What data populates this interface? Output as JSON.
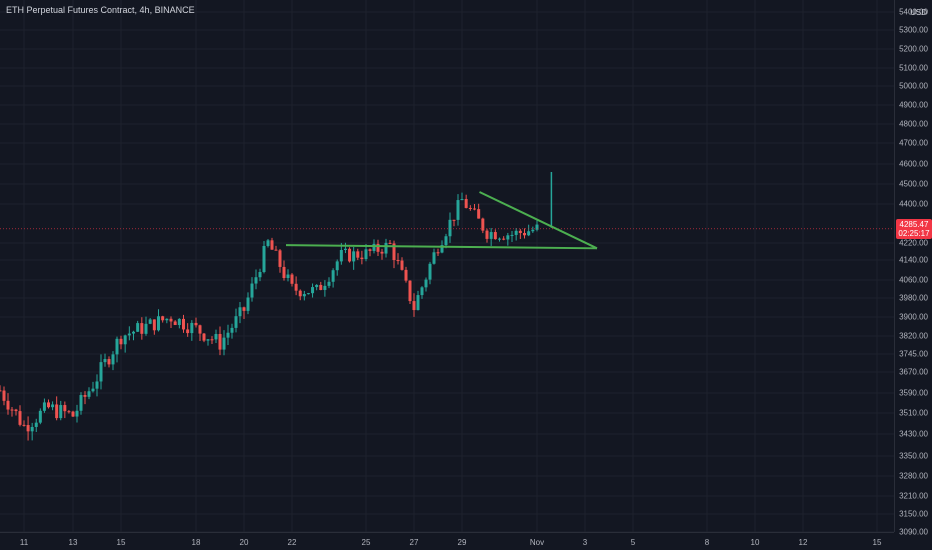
{
  "header": {
    "title": "ETH Perpetual Futures Contract, 4h, BINANCE"
  },
  "price_axis": {
    "currency": "USD",
    "ticks": [
      "5400.00",
      "5300.00",
      "5200.00",
      "5100.00",
      "5000.00",
      "4900.00",
      "4800.00",
      "4700.00",
      "4600.00",
      "4500.00",
      "4400.00",
      "4220.00",
      "4140.00",
      "4060.00",
      "3980.00",
      "3900.00",
      "3820.00",
      "3745.00",
      "3670.00",
      "3590.00",
      "3510.00",
      "3430.00",
      "3350.00",
      "3280.00",
      "3210.00",
      "3150.00",
      "3090.00"
    ]
  },
  "time_axis": {
    "ticks": [
      "11",
      "13",
      "15",
      "18",
      "20",
      "22",
      "25",
      "27",
      "29",
      "Nov",
      "3",
      "5",
      "8",
      "10",
      "12",
      "15"
    ]
  },
  "last_price": {
    "value": "4285.47",
    "countdown": "02:25:17"
  },
  "colors": {
    "up": "#26a69a",
    "down": "#ef5350",
    "trendline": "#4caf50",
    "price_line": "#f23645",
    "background": "#131722",
    "grid": "#1e222d"
  },
  "chart_data": {
    "type": "candlestick",
    "title": "ETH Perpetual Futures Contract, 4h, BINANCE",
    "currency": "USD",
    "timeframe": "4h",
    "annotations": [
      {
        "type": "trendline",
        "name": "horizontal support",
        "from": {
          "x": "Oct 21",
          "y": 4210
        },
        "to": {
          "x": "Nov 3",
          "y": 4195
        }
      },
      {
        "type": "trendline",
        "name": "descending resistance",
        "from": {
          "x": "Oct 29",
          "y": 4460
        },
        "to": {
          "x": "Nov 3",
          "y": 4195
        }
      }
    ],
    "close_path": [
      {
        "x": "Oct 10",
        "y": 3600
      },
      {
        "x": "Oct 11",
        "y": 3460
      },
      {
        "x": "Oct 12",
        "y": 3530
      },
      {
        "x": "Oct 13",
        "y": 3500
      },
      {
        "x": "Oct 14",
        "y": 3650
      },
      {
        "x": "Oct 15",
        "y": 3820
      },
      {
        "x": "Oct 16",
        "y": 3860
      },
      {
        "x": "Oct 17",
        "y": 3900
      },
      {
        "x": "Oct 18",
        "y": 3850
      },
      {
        "x": "Oct 19",
        "y": 3790
      },
      {
        "x": "Oct 20",
        "y": 3930
      },
      {
        "x": "Oct 21",
        "y": 4220
      },
      {
        "x": "Oct 22",
        "y": 4020
      },
      {
        "x": "Oct 23",
        "y": 4010
      },
      {
        "x": "Oct 24",
        "y": 4160
      },
      {
        "x": "Oct 25",
        "y": 4170
      },
      {
        "x": "Oct 26",
        "y": 4210
      },
      {
        "x": "Oct 27",
        "y": 3940
      },
      {
        "x": "Oct 28",
        "y": 4210
      },
      {
        "x": "Oct 29",
        "y": 4420
      },
      {
        "x": "Oct 30",
        "y": 4270
      },
      {
        "x": "Oct 31",
        "y": 4260
      },
      {
        "x": "Nov 1",
        "y": 4285.47
      }
    ],
    "last_price": 4285.47
  }
}
